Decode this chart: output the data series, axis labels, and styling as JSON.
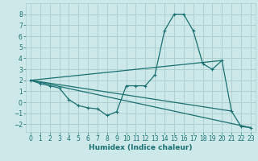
{
  "xlabel": "Humidex (Indice chaleur)",
  "background_color": "#cce8e8",
  "grid_color": "#aacccc",
  "line_color": "#1a7070",
  "xlim": [
    -0.5,
    23.5
  ],
  "ylim": [
    -2.7,
    9.0
  ],
  "xticks": [
    0,
    1,
    2,
    3,
    4,
    5,
    6,
    7,
    8,
    9,
    10,
    11,
    12,
    13,
    14,
    15,
    16,
    17,
    18,
    19,
    20,
    21,
    22,
    23
  ],
  "yticks": [
    -2,
    -1,
    0,
    1,
    2,
    3,
    4,
    5,
    6,
    7,
    8
  ],
  "main_x": [
    0,
    1,
    2,
    3,
    4,
    5,
    6,
    7,
    8,
    9,
    10,
    11,
    12,
    13,
    14,
    15,
    16,
    17,
    18,
    19,
    20,
    21,
    22,
    23
  ],
  "main_y": [
    2.0,
    1.7,
    1.5,
    1.3,
    0.25,
    -0.3,
    -0.5,
    -0.6,
    -1.2,
    -0.85,
    1.5,
    1.5,
    1.5,
    2.5,
    6.5,
    8.0,
    8.0,
    6.5,
    3.5,
    3.0,
    3.8,
    -0.8,
    -2.2,
    -2.3
  ],
  "trend1_x": [
    0,
    23
  ],
  "trend1_y": [
    2.0,
    -2.3
  ],
  "trend2_x": [
    0,
    20
  ],
  "trend2_y": [
    2.0,
    3.8
  ],
  "trend3_x": [
    0,
    21
  ],
  "trend3_y": [
    2.0,
    -0.8
  ],
  "line_width": 0.9,
  "tick_fontsize": 5.5,
  "label_fontsize": 6.5
}
